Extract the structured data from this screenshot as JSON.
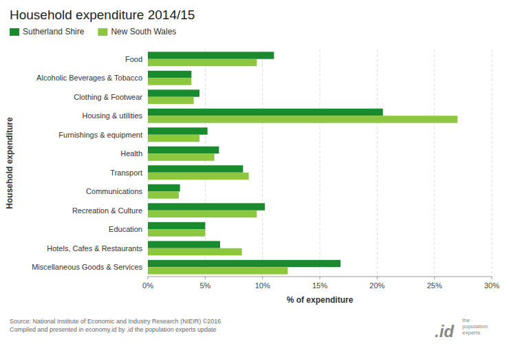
{
  "chart_data": {
    "type": "bar",
    "orientation": "horizontal",
    "title": "Household expenditure 2014/15",
    "xlabel": "% of expenditure",
    "ylabel": "Household expenditure",
    "categories": [
      "Food",
      "Alcoholic Beverages & Tobacco",
      "Clothing & Footwear",
      "Housing & utilities",
      "Furnishings & equipment",
      "Health",
      "Transport",
      "Communications",
      "Recreation & Culture",
      "Education",
      "Hotels, Cafes & Restaurants",
      "Miscellaneous Goods & Services"
    ],
    "series": [
      {
        "name": "Sutherland Shire",
        "color": "#1a8a2e",
        "values": [
          11.0,
          3.8,
          4.5,
          20.5,
          5.2,
          6.2,
          8.3,
          2.8,
          10.2,
          5.0,
          6.3,
          16.8
        ]
      },
      {
        "name": "New South Wales",
        "color": "#8dc63f",
        "values": [
          9.5,
          3.8,
          4.0,
          27.0,
          4.5,
          5.8,
          8.8,
          2.7,
          9.5,
          5.0,
          8.2,
          12.2
        ]
      }
    ],
    "xlim": [
      0,
      30
    ],
    "xticks": [
      {
        "value": 0,
        "label": "0%"
      },
      {
        "value": 5,
        "label": "5%"
      },
      {
        "value": 10,
        "label": "10%"
      },
      {
        "value": 15,
        "label": "15%"
      },
      {
        "value": 20,
        "label": "20%"
      },
      {
        "value": 25,
        "label": "25%"
      },
      {
        "value": 30,
        "label": "30%"
      }
    ],
    "grid": true,
    "legend": "top",
    "annotations": [
      "Source: National Institute of Economic and Industry Research (NIEIR) ©2016\nCompiled and presented in economy.id by .id the population experts update",
      ".id",
      "the\npopulation\nexperts"
    ]
  }
}
